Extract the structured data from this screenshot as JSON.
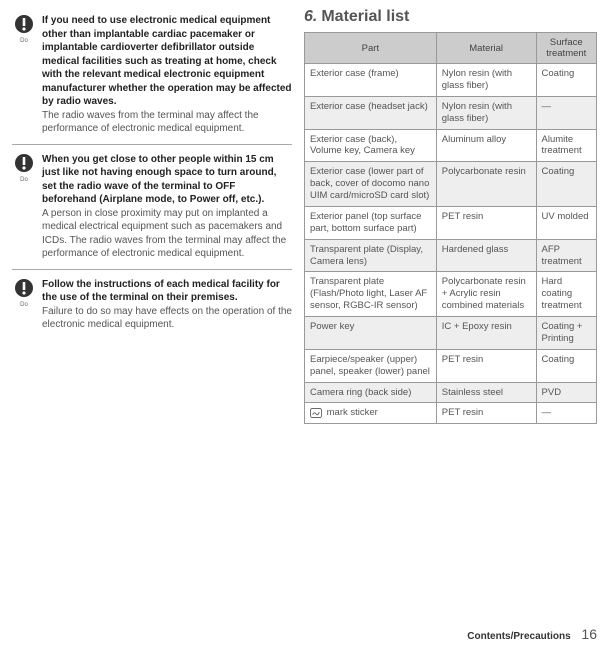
{
  "icon_label": "Do",
  "notices": [
    {
      "bold": "If you need to use electronic medical equipment other than implantable cardiac pacemaker or implantable cardioverter defibrillator outside medical facilities such as treating at home, check with the relevant medical electronic equipment manufacturer whether the operation may be affected by radio waves.",
      "reg": "The radio waves from the terminal may affect the performance of electronic medical equipment."
    },
    {
      "bold": "When you get close to other people within 15 cm just like not having enough space to turn around, set the radio wave of the terminal to OFF beforehand (Airplane mode, to Power off, etc.).",
      "reg": "A person in close proximity may put on implanted a medical electrical equipment such as pacemakers and ICDs. The radio waves from the terminal may affect the performance of electronic medical equipment."
    },
    {
      "bold": "Follow the instructions of each medical facility for the use of the terminal on their premises.",
      "reg": "Failure to do so may have effects on the operation of the electronic medical equipment."
    }
  ],
  "heading_num": "6.",
  "heading_text": "Material list",
  "headers": [
    "Part",
    "Material",
    "Surface treatment"
  ],
  "rows": [
    [
      "Exterior case (frame)",
      "Nylon resin (with glass fiber)",
      "Coating"
    ],
    [
      "Exterior case (headset jack)",
      "Nylon resin (with glass fiber)",
      "—"
    ],
    [
      "Exterior case (back), Volume key, Camera key",
      "Aluminum alloy",
      "Alumite treatment"
    ],
    [
      "Exterior case (lower part of back, cover of docomo nano UIM card/microSD card slot)",
      "Polycarbonate resin",
      "Coating"
    ],
    [
      "Exterior panel (top surface part, bottom surface part)",
      "PET resin",
      "UV molded"
    ],
    [
      "Transparent plate (Display, Camera lens)",
      "Hardened glass",
      "AFP treatment"
    ],
    [
      "Transparent plate (Flash/Photo light, Laser AF sensor, RGBC-IR sensor)",
      "Polycarbonate resin + Acrylic resin combined materials",
      "Hard coating treatment"
    ],
    [
      "Power key",
      "IC + Epoxy resin",
      "Coating + Printing"
    ],
    [
      "Earpiece/speaker (upper) panel, speaker (lower) panel",
      "PET resin",
      "Coating"
    ],
    [
      "Camera ring (back side)",
      "Stainless steel",
      "PVD"
    ],
    [
      "__MARK__ mark sticker",
      "PET resin",
      "—"
    ]
  ],
  "footer_label": "Contents/Precautions",
  "footer_page": "16"
}
